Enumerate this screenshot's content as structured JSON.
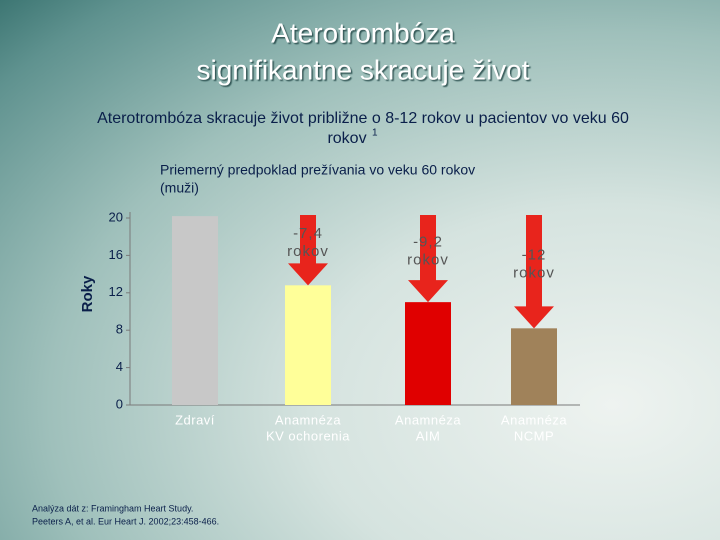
{
  "title": [
    "Aterotrombóza",
    "signifikantne skracuje život"
  ],
  "subtitle": [
    "Aterotrombóza skracuje život približne o  8-12 rokov u pacientov vo veku 60",
    "rokov"
  ],
  "subtitle_footnote": "1",
  "chart_data": {
    "type": "bar",
    "title": [
      "Priemerný predpoklad prežívania vo veku 60 rokov",
      "(muži)"
    ],
    "y_label": "Roky",
    "categories": [
      [
        "Zdraví"
      ],
      [
        "Anamnéza",
        "KV ochorenia"
      ],
      [
        "Anamnéza",
        "AIM"
      ],
      [
        "Anamnéza",
        "NCMP"
      ]
    ],
    "values": [
      20.2,
      12.8,
      11.0,
      8.2
    ],
    "colors": [
      "#c8c8c8",
      "#ffff99",
      "#e00000",
      "#a0825a"
    ],
    "annotations": [
      null,
      [
        "-7,4",
        "rokov"
      ],
      [
        "-9,2",
        "rokov"
      ],
      [
        "-12",
        "rokov"
      ]
    ],
    "ylim": [
      0,
      20
    ],
    "yticks": [
      0,
      4,
      8,
      12,
      16,
      20
    ]
  },
  "source": [
    "Analýza dát z: Framingham Heart Study.",
    "Peeters A, et al. Eur Heart J. 2002;23:458-466."
  ]
}
